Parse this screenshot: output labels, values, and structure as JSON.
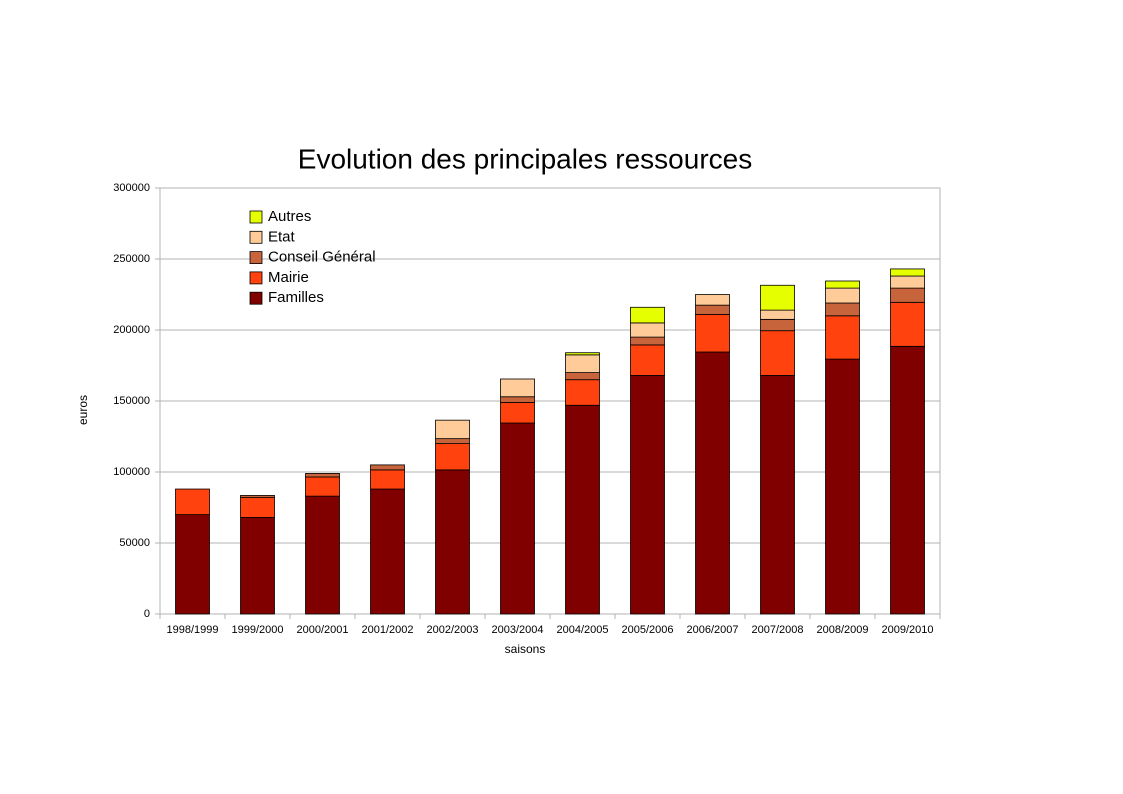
{
  "chart_data": {
    "type": "stacked_bar",
    "title": "Evolution des principales ressources",
    "x_label": "saisons",
    "y_label": "euros",
    "categories": [
      "1998/1999",
      "1999/2000",
      "2000/2001",
      "2001/2002",
      "2002/2003",
      "2003/2004",
      "2004/2005",
      "2005/2006",
      "2006/2007",
      "2007/2008",
      "2008/2009",
      "2009/2010"
    ],
    "series": [
      {
        "name": "Familles",
        "color": "#800000",
        "values": [
          70000,
          68000,
          83000,
          88000,
          101500,
          134500,
          147000,
          168000,
          184500,
          168000,
          179500,
          188500
        ]
      },
      {
        "name": "Mairie",
        "color": "#ff420e",
        "values": [
          18000,
          14000,
          13500,
          13500,
          18500,
          14500,
          18000,
          21500,
          26500,
          31500,
          30500,
          31000
        ]
      },
      {
        "name": "Conseil Général",
        "color": "#c8643c",
        "values": [
          0,
          1500,
          2500,
          3500,
          3500,
          4000,
          5000,
          5500,
          6500,
          8000,
          9000,
          10000
        ]
      },
      {
        "name": "Etat",
        "color": "#ffcc99",
        "values": [
          0,
          0,
          0,
          0,
          13000,
          12500,
          12500,
          10000,
          7500,
          6500,
          10500,
          8500
        ]
      },
      {
        "name": "Autres",
        "color": "#e6ff00",
        "values": [
          0,
          0,
          0,
          0,
          0,
          0,
          1500,
          11000,
          0,
          17500,
          5000,
          5000
        ]
      }
    ],
    "ylim": [
      0,
      300000
    ],
    "yticks": [
      0,
      50000,
      100000,
      150000,
      200000,
      250000,
      300000
    ],
    "grid": true
  }
}
